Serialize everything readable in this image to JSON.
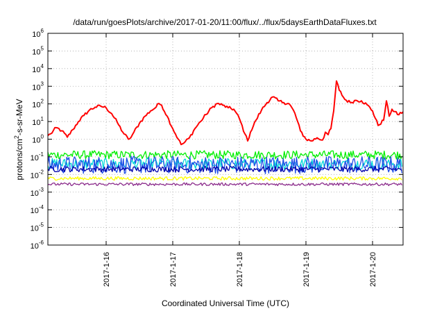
{
  "chart_data": {
    "type": "line",
    "title": "/data/run/goesPlots/archive/2017-01-20/11:00/flux/../flux/5daysEarthDataFluxes.txt",
    "xlabel": "Coordinated Universal Time (UTC)",
    "ylabel_parts": {
      "pre": "protons/cm",
      "sup": "2",
      "post": "-s-sr-MeV"
    },
    "y_scale": "log",
    "ylim": [
      1e-06,
      1000000.0
    ],
    "y_ticks": [
      {
        "base": "10",
        "exp": "-6",
        "value": 1e-06
      },
      {
        "base": "10",
        "exp": "-5",
        "value": 1e-05
      },
      {
        "base": "10",
        "exp": "-4",
        "value": 0.0001
      },
      {
        "base": "10",
        "exp": "-3",
        "value": 0.001
      },
      {
        "base": "10",
        "exp": "-2",
        "value": 0.01
      },
      {
        "base": "10",
        "exp": "-1",
        "value": 0.1
      },
      {
        "base": "10",
        "exp": "0",
        "value": 1
      },
      {
        "base": "10",
        "exp": "1",
        "value": 10
      },
      {
        "base": "10",
        "exp": "2",
        "value": 100
      },
      {
        "base": "10",
        "exp": "3",
        "value": 1000
      },
      {
        "base": "10",
        "exp": "4",
        "value": 10000
      },
      {
        "base": "10",
        "exp": "5",
        "value": 100000
      },
      {
        "base": "10",
        "exp": "6",
        "value": 1000000
      }
    ],
    "xlim": [
      "2017-01-15T03:00",
      "2017-01-20T11:00"
    ],
    "x_ticks": [
      {
        "label": "2017-1-16",
        "t": "2017-01-16T00:00"
      },
      {
        "label": "2017-1-17",
        "t": "2017-01-17T00:00"
      },
      {
        "label": "2017-1-18",
        "t": "2017-01-18T00:00"
      },
      {
        "label": "2017-1-19",
        "t": "2017-01-19T00:00"
      },
      {
        "label": "2017-1-20",
        "t": "2017-01-20T00:00"
      }
    ],
    "grid": true,
    "series": [
      {
        "color": "#ff0000",
        "points": [
          [
            "2017-01-15T03:00",
            1.6
          ],
          [
            "2017-01-15T04:00",
            2.0
          ],
          [
            "2017-01-15T06:00",
            4.5
          ],
          [
            "2017-01-15T08:00",
            3.0
          ],
          [
            "2017-01-15T10:00",
            1.3
          ],
          [
            "2017-01-15T12:00",
            3.5
          ],
          [
            "2017-01-15T14:00",
            10
          ],
          [
            "2017-01-15T16:00",
            22
          ],
          [
            "2017-01-15T18:00",
            45
          ],
          [
            "2017-01-15T20:00",
            65
          ],
          [
            "2017-01-15T22:00",
            75
          ],
          [
            "2017-01-16T00:00",
            60
          ],
          [
            "2017-01-16T02:00",
            28
          ],
          [
            "2017-01-16T04:00",
            9
          ],
          [
            "2017-01-16T06:00",
            2.5
          ],
          [
            "2017-01-16T08:00",
            1.0
          ],
          [
            "2017-01-16T09:00",
            1.3
          ],
          [
            "2017-01-16T10:00",
            2.5
          ],
          [
            "2017-01-16T12:00",
            8
          ],
          [
            "2017-01-16T14:00",
            20
          ],
          [
            "2017-01-16T16:00",
            40
          ],
          [
            "2017-01-16T18:00",
            65
          ],
          [
            "2017-01-16T19:00",
            105
          ],
          [
            "2017-01-16T20:00",
            85
          ],
          [
            "2017-01-16T22:00",
            20
          ],
          [
            "2017-01-17T00:00",
            4
          ],
          [
            "2017-01-17T02:00",
            1.0
          ],
          [
            "2017-01-17T03:00",
            0.5
          ],
          [
            "2017-01-17T04:00",
            0.6
          ],
          [
            "2017-01-17T06:00",
            1.2
          ],
          [
            "2017-01-17T08:00",
            4
          ],
          [
            "2017-01-17T10:00",
            10
          ],
          [
            "2017-01-17T12:00",
            25
          ],
          [
            "2017-01-17T14:00",
            60
          ],
          [
            "2017-01-17T16:00",
            105
          ],
          [
            "2017-01-17T18:00",
            85
          ],
          [
            "2017-01-17T20:00",
            60
          ],
          [
            "2017-01-17T22:00",
            50
          ],
          [
            "2017-01-18T00:00",
            15
          ],
          [
            "2017-01-18T02:00",
            2.0
          ],
          [
            "2017-01-18T03:00",
            0.8
          ],
          [
            "2017-01-18T04:00",
            2.5
          ],
          [
            "2017-01-18T06:00",
            12
          ],
          [
            "2017-01-18T08:00",
            45
          ],
          [
            "2017-01-18T10:00",
            120
          ],
          [
            "2017-01-18T12:00",
            250
          ],
          [
            "2017-01-18T14:00",
            150
          ],
          [
            "2017-01-18T16:00",
            120
          ],
          [
            "2017-01-18T18:00",
            100
          ],
          [
            "2017-01-18T20:00",
            30
          ],
          [
            "2017-01-18T22:00",
            3
          ],
          [
            "2017-01-19T00:00",
            1.0
          ],
          [
            "2017-01-19T02:00",
            0.8
          ],
          [
            "2017-01-19T04:00",
            1.2
          ],
          [
            "2017-01-19T06:00",
            0.9
          ],
          [
            "2017-01-19T07:00",
            2.5
          ],
          [
            "2017-01-19T08:00",
            1.8
          ],
          [
            "2017-01-19T09:00",
            4.0
          ],
          [
            "2017-01-19T10:00",
            40
          ],
          [
            "2017-01-19T11:00",
            2000
          ],
          [
            "2017-01-19T12:00",
            600
          ],
          [
            "2017-01-19T14:00",
            180
          ],
          [
            "2017-01-19T16:00",
            120
          ],
          [
            "2017-01-19T18:00",
            160
          ],
          [
            "2017-01-19T20:00",
            150
          ],
          [
            "2017-01-19T22:00",
            90
          ],
          [
            "2017-01-20T00:00",
            40
          ],
          [
            "2017-01-20T02:00",
            6
          ],
          [
            "2017-01-20T04:00",
            12
          ],
          [
            "2017-01-20T05:00",
            150
          ],
          [
            "2017-01-20T06:00",
            20
          ],
          [
            "2017-01-20T07:00",
            50
          ],
          [
            "2017-01-20T09:00",
            25
          ],
          [
            "2017-01-20T11:00",
            35
          ]
        ]
      },
      {
        "color": "#00ee00",
        "level": 0.13,
        "spread": 0.12
      },
      {
        "color": "#00d8d8",
        "level": 0.04,
        "spread": 0.16
      },
      {
        "color": "#1e4de6",
        "level": 0.035,
        "spread": 0.25
      },
      {
        "color": "#0000aa",
        "level": 0.02,
        "spread": 0.08
      },
      {
        "color": "#ffff00",
        "level": 0.006,
        "spread": 0.05
      },
      {
        "color": "#8b2b8b",
        "level": 0.0028,
        "spread": 0.04
      }
    ]
  }
}
